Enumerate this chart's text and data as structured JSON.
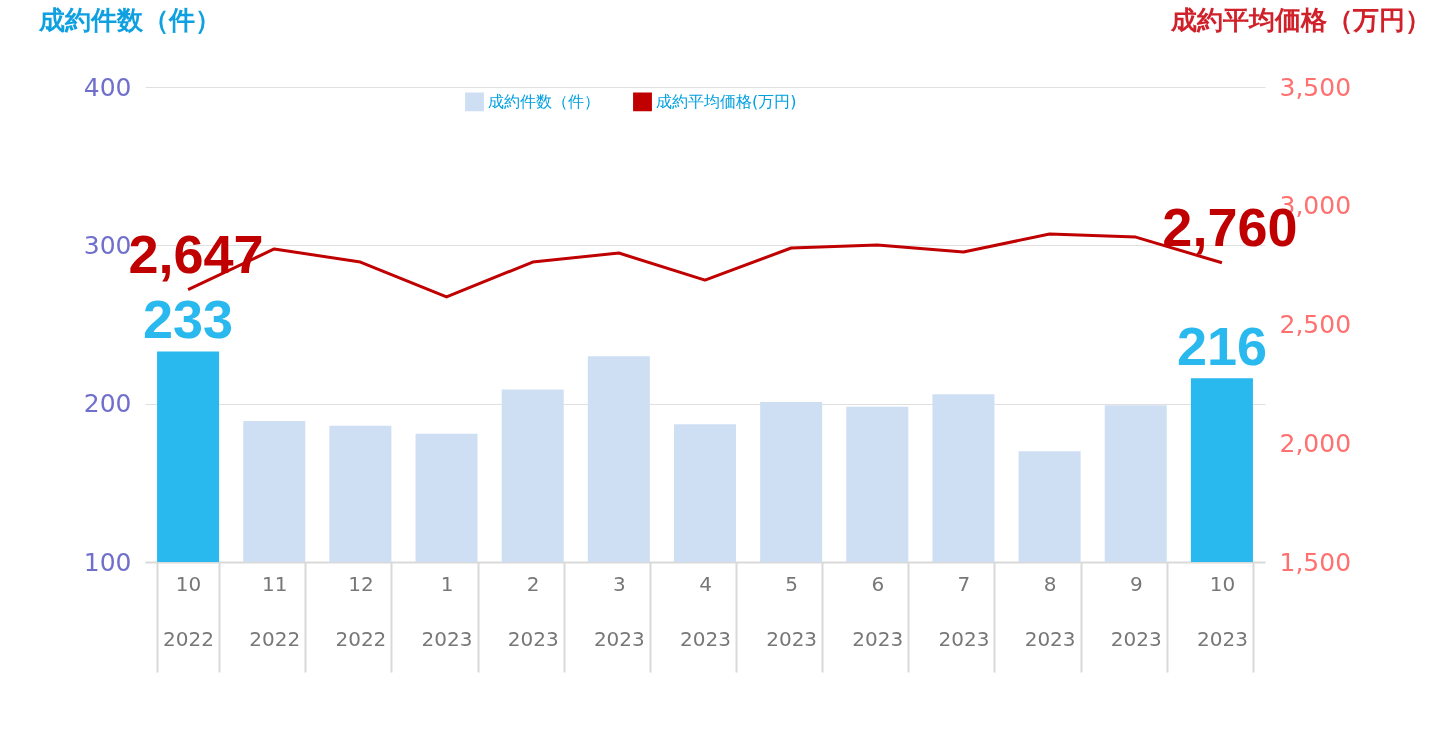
{
  "chart_data": {
    "type": "bar",
    "ylabel": "成約件数（件）",
    "y2label": "成約平均価格（万円）",
    "categories": [
      "10\n2022",
      "11\n2022",
      "12\n2022",
      "1\n2023",
      "2\n2023",
      "3\n2023",
      "4\n2023",
      "5\n2023",
      "6\n2023",
      "7\n2023",
      "8\n2023",
      "9\n2023",
      "10\n2023"
    ],
    "series": [
      {
        "name": "成約件数（件）",
        "color": "#cfdff3",
        "colors": [
          "#29b9ee",
          "#cfdff3",
          "#cfdff3",
          "#cfdff3",
          "#cfdff3",
          "#cfdff3",
          "#cfdff3",
          "#cfdff3",
          "#cfdff3",
          "#cfdff3",
          "#cfdff3",
          "#cfdff3",
          "#29b9ee"
        ],
        "values": [
          233,
          189,
          186,
          181,
          209,
          230,
          187,
          201,
          198,
          206,
          170,
          199,
          216
        ],
        "value_labels": [
          "233",
          null,
          null,
          null,
          null,
          null,
          null,
          null,
          null,
          null,
          null,
          null,
          "216"
        ]
      },
      {
        "name": "成約平均価格(万円)",
        "type": "line",
        "axis": "y2",
        "color": "#c00000",
        "values": [
          2647,
          2818,
          2763,
          2616,
          2763,
          2801,
          2687,
          2822,
          2835,
          2805,
          2881,
          2868,
          2760
        ],
        "value_labels": [
          "2,647",
          null,
          null,
          null,
          null,
          null,
          null,
          null,
          null,
          null,
          null,
          null,
          "2,760"
        ]
      }
    ],
    "ylim": [
      100,
      400
    ],
    "yticks": [
      100,
      200,
      300,
      400
    ],
    "y2lim": [
      1500,
      3500
    ],
    "y2ticks": [
      {
        "value": 1500,
        "label": "1,500"
      },
      {
        "value": 2000,
        "label": "2,000"
      },
      {
        "value": 2500,
        "label": "2,500"
      },
      {
        "value": 3000,
        "label": "3,000"
      },
      {
        "value": 3500,
        "label": "3,500"
      }
    ],
    "grid": "y",
    "legend": "top"
  }
}
